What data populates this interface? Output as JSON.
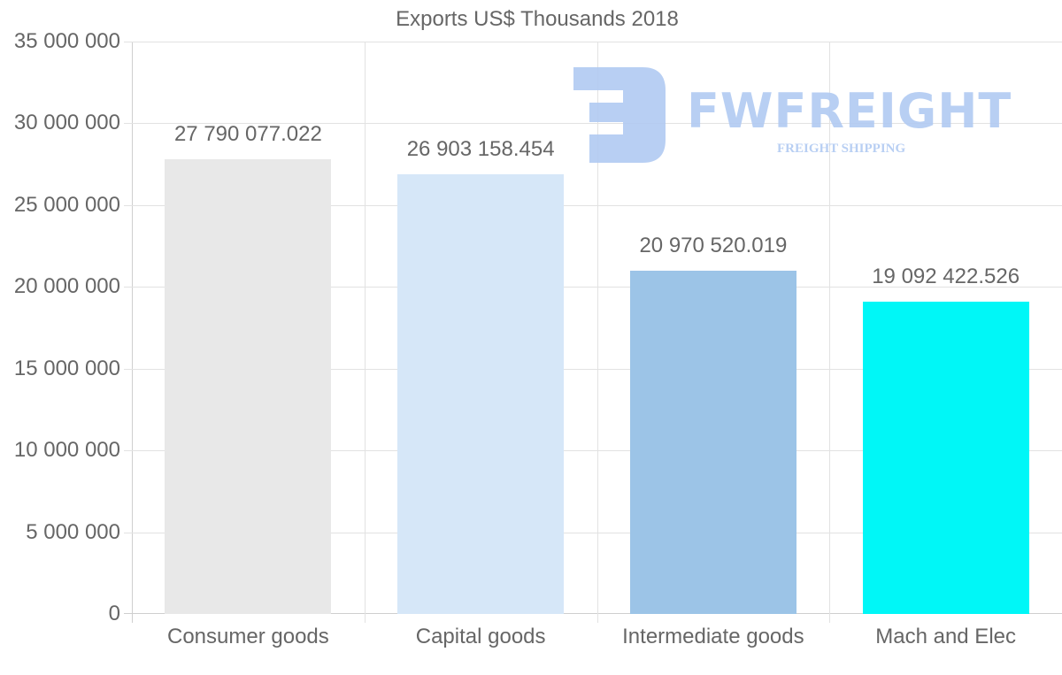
{
  "chart_data": {
    "type": "bar",
    "title": "Exports US$ Thousands 2018",
    "xlabel": "",
    "ylabel": "",
    "categories": [
      "Consumer goods",
      "Capital goods",
      "Intermediate goods",
      "Mach and Elec"
    ],
    "values": [
      27790077.022,
      26903158.454,
      20970520.019,
      19092422.526
    ],
    "value_labels": [
      "27 790 077.022",
      "26 903 158.454",
      "20 970 520.019",
      "19 092 422.526"
    ],
    "colors": [
      "#e8e8e8",
      "#d6e7f8",
      "#9cc4e7",
      "#00f7f7"
    ],
    "ylim": [
      0,
      35000000
    ],
    "yticks": [
      0,
      5000000,
      10000000,
      15000000,
      20000000,
      25000000,
      30000000,
      35000000
    ],
    "ytick_labels": [
      "0",
      "5 000 000",
      "10 000 000",
      "15 000 000",
      "20 000 000",
      "25 000 000",
      "30 000 000",
      "35 000 000"
    ],
    "grid": true,
    "legend": "none"
  },
  "watermark": {
    "brand": "FWFREIGHT",
    "tagline": "FREIGHT SHIPPING",
    "color": "#b3cbf2"
  }
}
